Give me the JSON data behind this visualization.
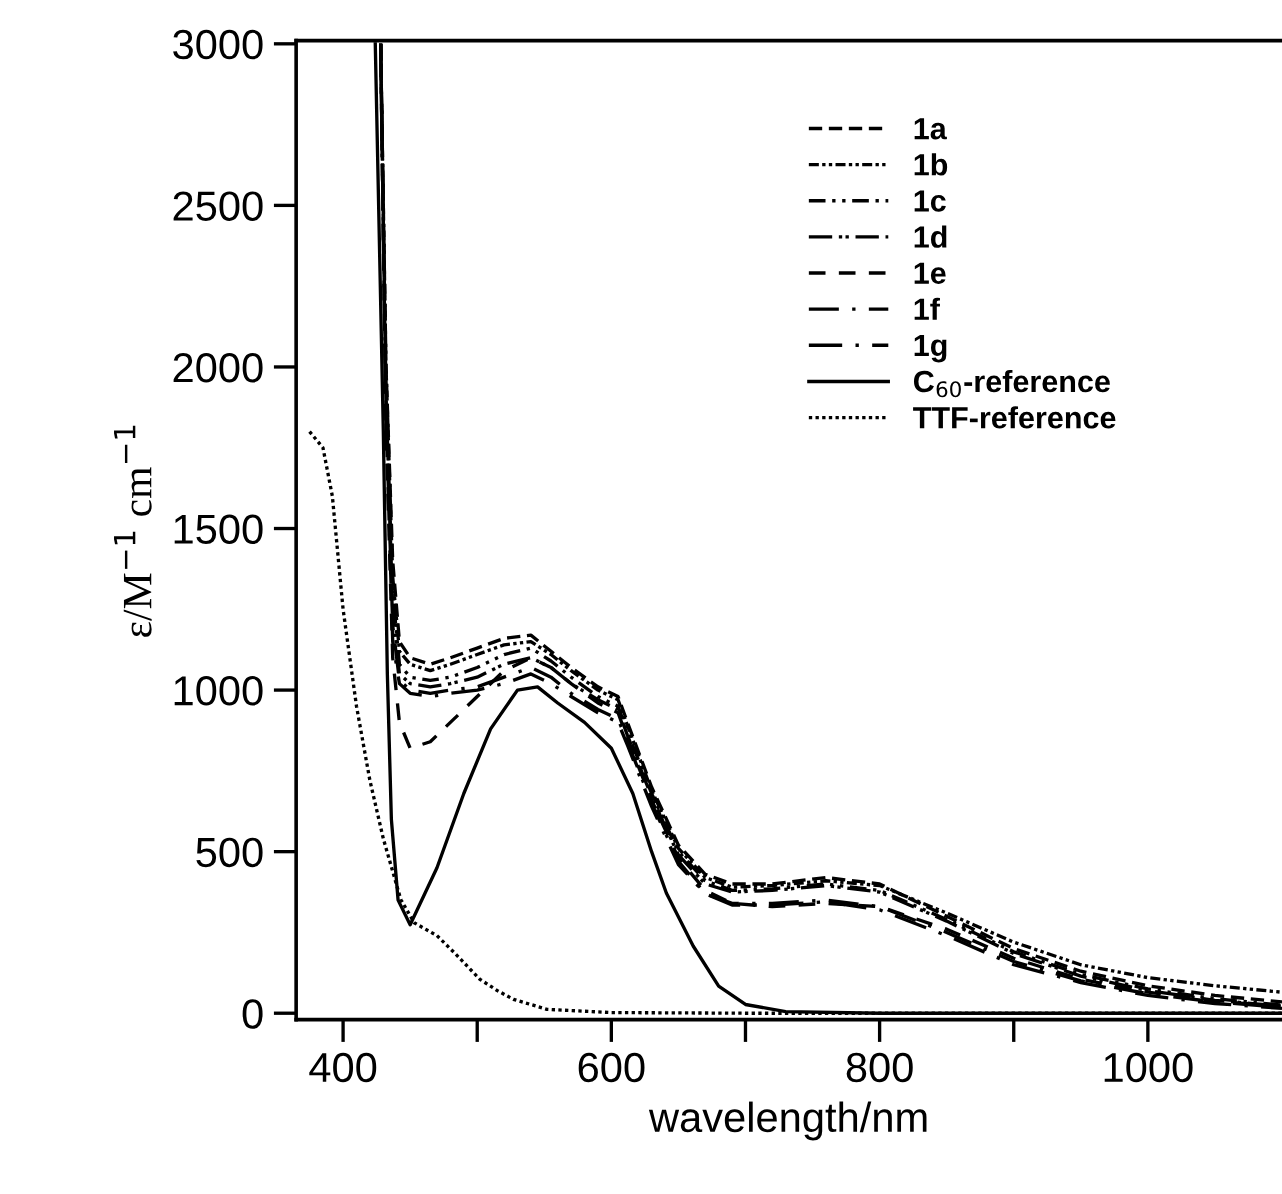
{
  "chart_data": {
    "type": "line",
    "xlabel": "wavelength/nm",
    "ylabel": "ε/M$^{−1}$ cm$^{−1}$",
    "xlim": [
      365,
      1100
    ],
    "ylim": [
      -20,
      3010
    ],
    "xticks": [
      400,
      {
        "value": 500,
        "label": null
      },
      600,
      {
        "value": 700,
        "label": null
      },
      800,
      {
        "value": 900,
        "label": null
      },
      1000
    ],
    "yticks": [
      0,
      500,
      1000,
      1500,
      2000,
      2500,
      3000
    ],
    "grid": false,
    "legend": "top right",
    "marker": "none",
    "x": [
      428,
      432,
      437,
      442,
      450,
      465,
      480,
      500,
      520,
      540,
      555,
      570,
      590,
      605,
      612,
      630,
      650,
      670,
      690,
      720,
      760,
      800,
      850,
      900,
      950,
      1000,
      1050,
      1100
    ],
    "series": [
      {
        "name": "1a",
        "color": "#000000",
        "line_style": "dashed",
        "values": [
          3000,
          2000,
          1400,
          1150,
          1100,
          1080,
          1100,
          1130,
          1160,
          1170,
          1120,
          1070,
          1010,
          980,
          900,
          700,
          520,
          430,
          400,
          400,
          420,
          400,
          300,
          200,
          130,
          85,
          55,
          35
        ]
      },
      {
        "name": "1b",
        "color": "#000000",
        "line_style": "dashed",
        "values": [
          3000,
          2000,
          1350,
          1120,
          1080,
          1060,
          1080,
          1110,
          1140,
          1150,
          1110,
          1060,
          1000,
          970,
          890,
          690,
          510,
          420,
          390,
          395,
          410,
          395,
          310,
          220,
          150,
          110,
          85,
          65
        ]
      },
      {
        "name": "1c",
        "color": "#000000",
        "line_style": "dashed",
        "values": [
          3000,
          1900,
          1300,
          1080,
          1040,
          1030,
          1040,
          1070,
          1110,
          1130,
          1090,
          1040,
          980,
          950,
          870,
          680,
          500,
          410,
          380,
          385,
          400,
          380,
          290,
          190,
          120,
          75,
          45,
          25
        ]
      },
      {
        "name": "1d",
        "color": "#000000",
        "line_style": "dashed",
        "values": [
          3000,
          1900,
          1250,
          1050,
          1020,
          1010,
          1020,
          1040,
          1080,
          1100,
          1070,
          1020,
          970,
          940,
          860,
          670,
          490,
          400,
          375,
          380,
          395,
          375,
          285,
          185,
          115,
          70,
          40,
          22
        ]
      },
      {
        "name": "1e",
        "color": "#000000",
        "line_style": "dashed",
        "values": [
          3000,
          1800,
          1100,
          900,
          820,
          840,
          900,
          980,
          1060,
          1100,
          1070,
          1020,
          960,
          930,
          850,
          660,
          480,
          380,
          340,
          330,
          340,
          330,
          260,
          170,
          105,
          65,
          38,
          20
        ]
      },
      {
        "name": "1f",
        "color": "#000000",
        "line_style": "dashed",
        "values": [
          3000,
          1850,
          1200,
          1030,
          1000,
          990,
          1000,
          1010,
          1040,
          1070,
          1040,
          990,
          940,
          910,
          840,
          650,
          470,
          370,
          340,
          340,
          350,
          330,
          250,
          160,
          100,
          60,
          35,
          18
        ]
      },
      {
        "name": "1g",
        "color": "#000000",
        "line_style": "dashed",
        "values": [
          3000,
          1850,
          1150,
          1020,
          990,
          980,
          990,
          1000,
          1020,
          1050,
          1020,
          980,
          930,
          900,
          830,
          640,
          460,
          370,
          335,
          335,
          345,
          320,
          240,
          150,
          95,
          55,
          30,
          15
        ]
      },
      {
        "name": "C$_{60}$-reference",
        "color": "#000000",
        "line_style": "solid",
        "x": [
          424,
          430,
          433,
          436,
          441,
          450,
          470,
          490,
          510,
          530,
          545,
          560,
          580,
          600,
          616,
          630,
          641,
          661,
          680,
          700,
          730,
          800,
          1100
        ],
        "values": [
          3000,
          1800,
          1050,
          600,
          350,
          274,
          450,
          680,
          880,
          1000,
          1010,
          960,
          900,
          820,
          680,
          500,
          372,
          208,
          84,
          27,
          5,
          0,
          0
        ]
      },
      {
        "name": "TTF-reference",
        "color": "#000000",
        "line_style": "dotted",
        "x": [
          375,
          385,
          392,
          400,
          410,
          420,
          430,
          443,
          453,
          470,
          483,
          502,
          515,
          527,
          552,
          600,
          700,
          1100
        ],
        "values": [
          1800,
          1750,
          1600,
          1250,
          950,
          720,
          540,
          352,
          280,
          240,
          187,
          105,
          70,
          43,
          12,
          2,
          0,
          0
        ]
      }
    ]
  }
}
